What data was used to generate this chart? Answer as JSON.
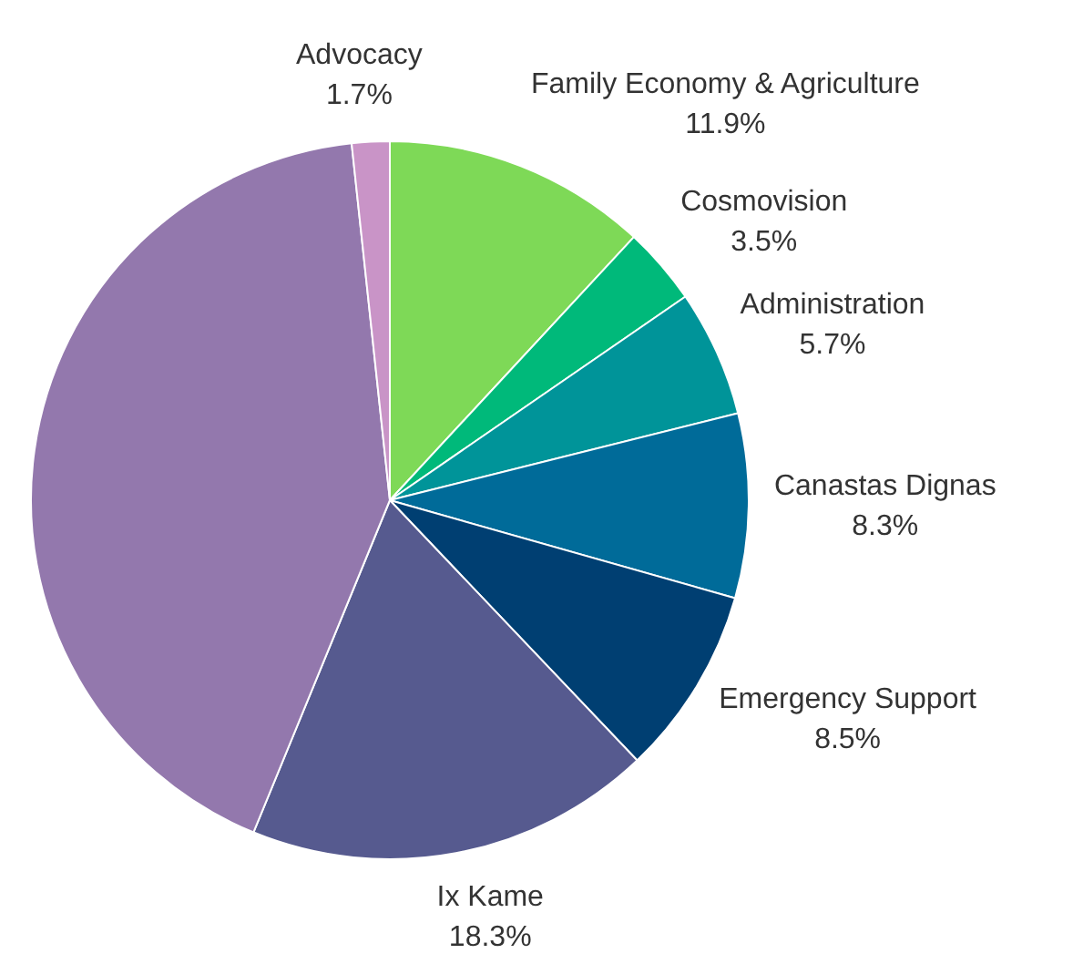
{
  "chart_data": {
    "type": "pie",
    "categories": [
      "Family Economy & Agriculture",
      "Cosmovision",
      "Administration",
      "Canastas Dignas",
      "Emergency Support",
      "Ix Kame",
      null,
      "Advocacy"
    ],
    "values": [
      11.9,
      3.5,
      5.7,
      8.3,
      8.5,
      18.3,
      42.1,
      1.7
    ],
    "value_labels": [
      "11.9%",
      "3.5%",
      "5.7%",
      "8.3%",
      "8.5%",
      "18.3%",
      null,
      "1.7%"
    ],
    "colors": [
      "#7ed957",
      "#00b97a",
      "#009499",
      "#006b99",
      "#003f72",
      "#565a8f",
      "#9378ad",
      "#c994c7"
    ],
    "legend": false
  }
}
